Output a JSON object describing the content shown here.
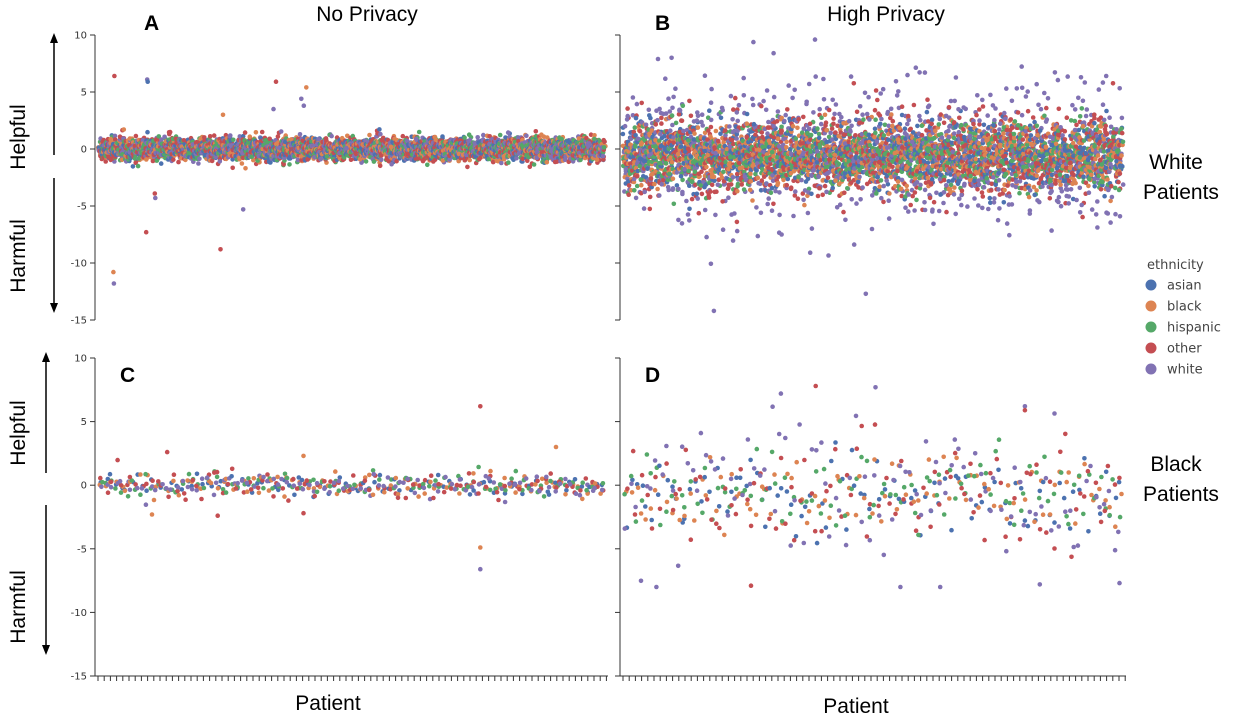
{
  "columns": {
    "left_title": "No Privacy",
    "right_title": "High Privacy"
  },
  "rows": {
    "top_label": [
      "White",
      "Patients"
    ],
    "bottom_label": [
      "Black",
      "Patients"
    ]
  },
  "side_labels": {
    "helpful": "Helpful",
    "harmful": "Harmful"
  },
  "xlabel": "Patient",
  "legend": {
    "title": "ethnicity",
    "entries": [
      {
        "name": "asian",
        "color": "#4c72b0"
      },
      {
        "name": "black",
        "color": "#dd8452"
      },
      {
        "name": "hispanic",
        "color": "#55a868"
      },
      {
        "name": "other",
        "color": "#c44e52"
      },
      {
        "name": "white",
        "color": "#8172b3"
      }
    ]
  },
  "chart_data": [
    {
      "panel": "A",
      "type": "scatter",
      "ylim": [
        -15,
        10
      ],
      "yticks": [
        10,
        5,
        0,
        -5,
        -10,
        -15
      ],
      "n_patients": 1000,
      "spread_sd": 0.5,
      "grid": false,
      "outliers": [
        {
          "x": 30,
          "y": 6.4,
          "ethnicity": "other"
        },
        {
          "x": 28,
          "y": -10.8,
          "ethnicity": "black"
        },
        {
          "x": 29,
          "y": -11.8,
          "ethnicity": "white"
        },
        {
          "x": 95,
          "y": 6.1,
          "ethnicity": "white"
        },
        {
          "x": 96,
          "y": 5.9,
          "ethnicity": "asian"
        },
        {
          "x": 93,
          "y": -7.3,
          "ethnicity": "other"
        },
        {
          "x": 110,
          "y": -3.9,
          "ethnicity": "other"
        },
        {
          "x": 111,
          "y": -4.3,
          "ethnicity": "white"
        },
        {
          "x": 240,
          "y": -8.8,
          "ethnicity": "other"
        },
        {
          "x": 245,
          "y": 3.0,
          "ethnicity": "black"
        },
        {
          "x": 285,
          "y": -5.3,
          "ethnicity": "white"
        },
        {
          "x": 350,
          "y": 5.9,
          "ethnicity": "other"
        },
        {
          "x": 345,
          "y": 3.5,
          "ethnicity": "white"
        },
        {
          "x": 400,
          "y": 4.4,
          "ethnicity": "white"
        },
        {
          "x": 410,
          "y": 5.4,
          "ethnicity": "black"
        },
        {
          "x": 405,
          "y": 3.8,
          "ethnicity": "white"
        }
      ]
    },
    {
      "panel": "B",
      "type": "scatter",
      "ylim": [
        -15,
        10
      ],
      "yticks": [
        10,
        5,
        0,
        -5,
        -10,
        -15
      ],
      "n_patients": 1000,
      "spread_sd": 2.5,
      "grid": false,
      "outliers": [
        {
          "x": 180,
          "y": -14.2,
          "ethnicity": "white"
        },
        {
          "x": 485,
          "y": -12.7,
          "ethnicity": "white"
        },
        {
          "x": 300,
          "y": 8.4,
          "ethnicity": "white"
        },
        {
          "x": 95,
          "y": 8.0,
          "ethnicity": "white"
        }
      ]
    },
    {
      "panel": "C",
      "type": "scatter",
      "ylim": [
        -15,
        10
      ],
      "yticks": [
        10,
        5,
        0,
        -5,
        -10,
        -15
      ],
      "n_patients": 100,
      "spread_sd": 0.5,
      "grid": false,
      "outliers": [
        {
          "x": 13,
          "y": 2.6,
          "ethnicity": "other"
        },
        {
          "x": 10,
          "y": -2.3,
          "ethnicity": "black"
        },
        {
          "x": 23,
          "y": -2.4,
          "ethnicity": "other"
        },
        {
          "x": 40,
          "y": 2.3,
          "ethnicity": "black"
        },
        {
          "x": 40,
          "y": -2.2,
          "ethnicity": "other"
        },
        {
          "x": 75,
          "y": 6.2,
          "ethnicity": "other"
        },
        {
          "x": 75,
          "y": -4.9,
          "ethnicity": "black"
        },
        {
          "x": 75,
          "y": -6.6,
          "ethnicity": "white"
        },
        {
          "x": 90,
          "y": 3.0,
          "ethnicity": "black"
        }
      ]
    },
    {
      "panel": "D",
      "type": "scatter",
      "ylim": [
        -15,
        10
      ],
      "yticks": [
        10,
        5,
        0,
        -5,
        -10,
        -15
      ],
      "n_patients": 100,
      "spread_sd": 2.6,
      "grid": false,
      "outliers": [
        {
          "x": 6,
          "y": -8.0,
          "ethnicity": "white"
        },
        {
          "x": 25,
          "y": -7.9,
          "ethnicity": "other"
        },
        {
          "x": 55,
          "y": -8.0,
          "ethnicity": "white"
        },
        {
          "x": 63,
          "y": -8.0,
          "ethnicity": "white"
        },
        {
          "x": 83,
          "y": -7.8,
          "ethnicity": "white"
        },
        {
          "x": 99,
          "y": -7.7,
          "ethnicity": "white"
        },
        {
          "x": 31,
          "y": 7.2,
          "ethnicity": "white"
        },
        {
          "x": 38,
          "y": 7.8,
          "ethnicity": "other"
        },
        {
          "x": 50,
          "y": 7.7,
          "ethnicity": "white"
        },
        {
          "x": 80,
          "y": 6.2,
          "ethnicity": "white"
        },
        {
          "x": 80,
          "y": 5.9,
          "ethnicity": "other"
        }
      ]
    }
  ]
}
